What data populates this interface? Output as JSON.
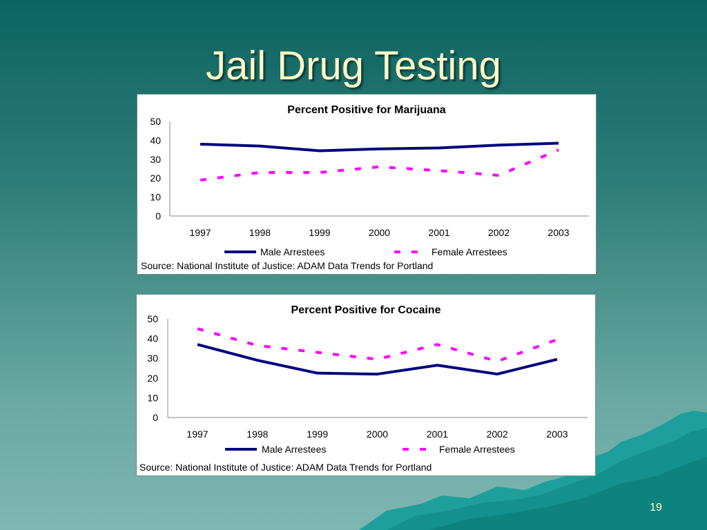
{
  "slide": {
    "title": "Jail Drug Testing",
    "page_number": "19"
  },
  "colors": {
    "male": "#000080",
    "female": "#ff00ff",
    "title": "#fff8c6"
  },
  "chart_data": [
    {
      "type": "line",
      "title": "Percent Positive for Marijuana",
      "categories": [
        "1997",
        "1998",
        "1999",
        "2000",
        "2001",
        "2002",
        "2003"
      ],
      "ylim": [
        0,
        50
      ],
      "yticks": [
        "0",
        "10",
        "20",
        "30",
        "40",
        "50"
      ],
      "series": [
        {
          "name": "Male Arrestees",
          "values": [
            38,
            37,
            34.5,
            35.5,
            36,
            37.5,
            38.5
          ]
        },
        {
          "name": "Female Arrestees",
          "values": [
            19,
            23,
            23,
            26,
            24,
            21.5,
            35
          ]
        }
      ],
      "legend_position": "bottom",
      "source": "Source: National Institute of Justice: ADAM Data Trends for Portland"
    },
    {
      "type": "line",
      "title": "Percent Positive for Cocaine",
      "categories": [
        "1997",
        "1998",
        "1999",
        "2000",
        "2001",
        "2002",
        "2003"
      ],
      "ylim": [
        0,
        50
      ],
      "yticks": [
        "0",
        "10",
        "20",
        "30",
        "40",
        "50"
      ],
      "series": [
        {
          "name": "Male Arrestees",
          "values": [
            37,
            29,
            22.5,
            22,
            26.5,
            22,
            29.5
          ]
        },
        {
          "name": "Female Arrestees",
          "values": [
            45,
            36.5,
            33,
            29.5,
            37,
            28.5,
            39.5
          ]
        }
      ],
      "legend_position": "bottom",
      "source": "Source: National Institute of Justice: ADAM Data Trends for Portland"
    }
  ]
}
